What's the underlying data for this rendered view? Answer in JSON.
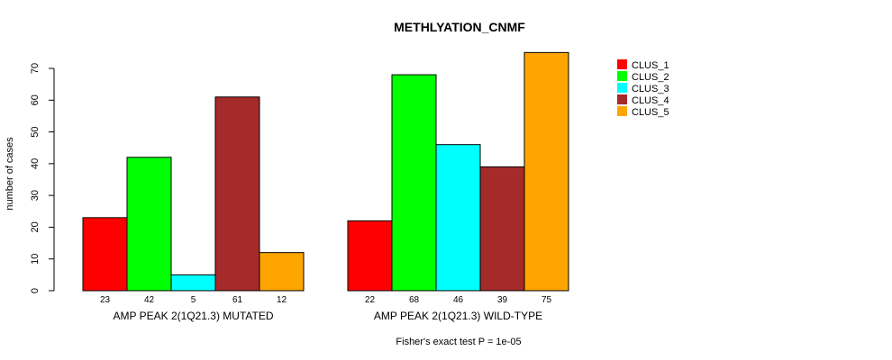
{
  "chart_data": {
    "type": "bar",
    "title": "METHLYATION_CNMF",
    "ylabel": "number of cases",
    "ylim": [
      0,
      70
    ],
    "yticks": [
      0,
      10,
      20,
      30,
      40,
      50,
      60,
      70
    ],
    "grid": false,
    "legend_position": "top-right",
    "series": [
      {
        "name": "CLUS_1",
        "color": "#FF0000"
      },
      {
        "name": "CLUS_2",
        "color": "#00FF00"
      },
      {
        "name": "CLUS_3",
        "color": "#00FFFF"
      },
      {
        "name": "CLUS_4",
        "color": "#A52A2A"
      },
      {
        "name": "CLUS_5",
        "color": "#FFA500"
      }
    ],
    "groups": [
      {
        "label": "AMP PEAK  2(1Q21.3) MUTATED",
        "values": [
          23,
          42,
          5,
          61,
          12
        ],
        "count_labels": [
          "23",
          "42",
          "5",
          "61",
          "12"
        ]
      },
      {
        "label": "AMP PEAK  2(1Q21.3) WILD-TYPE",
        "values": [
          22,
          68,
          46,
          39,
          75
        ],
        "count_labels": [
          "22",
          "68",
          "46",
          "39",
          "75"
        ]
      }
    ],
    "footnote": "Fisher's exact test P = 1e-05"
  }
}
